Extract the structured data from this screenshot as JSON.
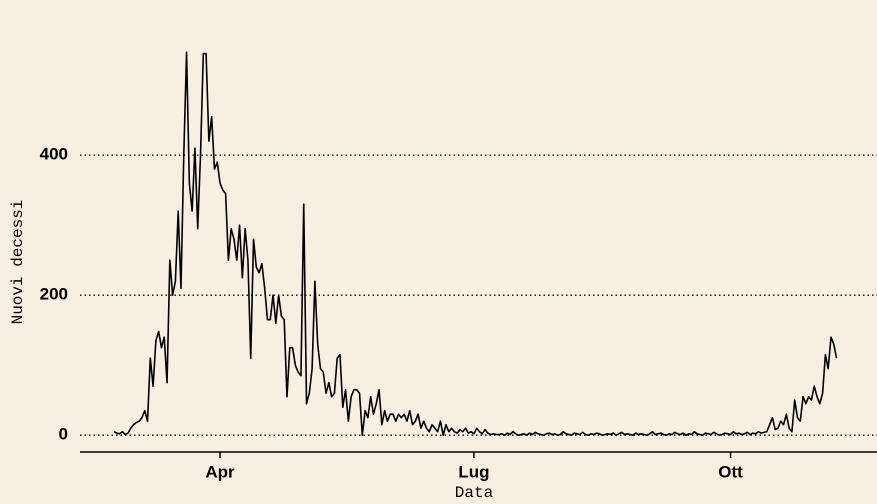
{
  "chart_data": {
    "type": "line",
    "x_label": "Data",
    "y_label": "Nuovi decessi",
    "x": [
      54,
      55,
      56,
      57,
      58,
      59,
      60,
      61,
      62,
      63,
      64,
      65,
      66,
      67,
      68,
      69,
      70,
      71,
      72,
      73,
      74,
      75,
      76,
      77,
      78,
      79,
      80,
      81,
      82,
      83,
      84,
      85,
      86,
      87,
      88,
      89,
      90,
      91,
      92,
      93,
      94,
      95,
      96,
      97,
      98,
      99,
      100,
      101,
      102,
      103,
      104,
      105,
      106,
      107,
      108,
      109,
      110,
      111,
      112,
      113,
      114,
      115,
      116,
      117,
      118,
      119,
      120,
      121,
      122,
      123,
      124,
      125,
      126,
      127,
      128,
      129,
      130,
      131,
      132,
      133,
      134,
      135,
      136,
      137,
      138,
      139,
      140,
      141,
      142,
      143,
      144,
      145,
      146,
      147,
      148,
      149,
      150,
      151,
      152,
      153,
      154,
      155,
      156,
      157,
      158,
      159,
      160,
      161,
      162,
      163,
      164,
      165,
      166,
      167,
      168,
      169,
      170,
      171,
      172,
      173,
      174,
      175,
      176,
      177,
      178,
      179,
      180,
      181,
      182,
      183,
      184,
      185,
      186,
      187,
      188,
      189,
      190,
      191,
      192,
      193,
      194,
      195,
      196,
      197,
      198,
      199,
      200,
      201,
      202,
      203,
      204,
      205,
      206,
      207,
      208,
      209,
      210,
      211,
      212,
      213,
      214,
      215,
      216,
      217,
      218,
      219,
      220,
      221,
      222,
      223,
      224,
      225,
      226,
      227,
      228,
      229,
      230,
      231,
      232,
      233,
      234,
      235,
      236,
      237,
      238,
      239,
      240,
      241,
      242,
      243,
      244,
      245,
      246,
      247,
      248,
      249,
      250,
      251,
      252,
      253,
      254,
      255,
      256,
      257,
      258,
      259,
      260,
      261,
      262,
      263,
      264,
      265,
      266,
      267,
      268,
      269,
      270,
      271,
      272,
      273,
      274,
      275,
      276,
      277,
      278,
      279,
      280,
      281,
      282,
      283,
      284,
      285,
      286,
      287,
      288,
      289,
      290,
      291,
      292,
      293,
      294,
      295,
      296,
      297,
      298,
      299,
      300,
      301,
      302,
      303,
      304,
      305,
      306,
      307,
      308,
      309,
      310,
      311,
      312,
      313
    ],
    "series": [
      {
        "name": null,
        "color": "#000000",
        "values": [
          5,
          3,
          2,
          5,
          1,
          3,
          10,
          15,
          18,
          20,
          25,
          35,
          20,
          110,
          70,
          135,
          148,
          125,
          140,
          75,
          250,
          200,
          220,
          320,
          210,
          400,
          547,
          360,
          320,
          410,
          295,
          400,
          545,
          545,
          420,
          455,
          380,
          390,
          360,
          350,
          345,
          250,
          295,
          280,
          250,
          300,
          225,
          295,
          250,
          110,
          280,
          240,
          232,
          245,
          210,
          165,
          165,
          200,
          160,
          200,
          170,
          165,
          55,
          125,
          125,
          100,
          90,
          85,
          330,
          45,
          60,
          95,
          220,
          130,
          95,
          90,
          60,
          75,
          55,
          60,
          110,
          115,
          40,
          65,
          20,
          55,
          65,
          65,
          60,
          0,
          35,
          25,
          55,
          30,
          45,
          65,
          15,
          35,
          20,
          30,
          30,
          20,
          30,
          25,
          30,
          20,
          35,
          15,
          20,
          30,
          10,
          20,
          10,
          5,
          15,
          10,
          5,
          20,
          0,
          15,
          5,
          10,
          5,
          3,
          8,
          5,
          10,
          3,
          5,
          2,
          10,
          5,
          2,
          8,
          3,
          1,
          2,
          1,
          1,
          2,
          0,
          3,
          1,
          5,
          2,
          0,
          1,
          2,
          0,
          3,
          1,
          4,
          2,
          1,
          0,
          2,
          3,
          1,
          2,
          0,
          1,
          5,
          2,
          1,
          0,
          3,
          2,
          1,
          4,
          1,
          0,
          2,
          1,
          3,
          2,
          0,
          1,
          2,
          1,
          3,
          0,
          2,
          4,
          1,
          2,
          1,
          0,
          3,
          1,
          2,
          1,
          0,
          2,
          5,
          1,
          2,
          3,
          1,
          0,
          2,
          1,
          4,
          2,
          1,
          3,
          0,
          2,
          1,
          5,
          2,
          1,
          0,
          3,
          2,
          1,
          4,
          2,
          0,
          1,
          3,
          2,
          1,
          5,
          2,
          3,
          1,
          2,
          4,
          1,
          3,
          2,
          5,
          3,
          4,
          5,
          15,
          25,
          8,
          10,
          20,
          15,
          30,
          10,
          5,
          50,
          25,
          20,
          55,
          45,
          55,
          50,
          70,
          55,
          45,
          60,
          115,
          95,
          140,
          130,
          110
        ]
      }
    ],
    "xlim": [
      41.8,
      327.5
    ],
    "xticks": [
      {
        "value": 92,
        "label": "Apr"
      },
      {
        "value": 183,
        "label": "Lug"
      },
      {
        "value": 275,
        "label": "Ott"
      }
    ],
    "ylim": [
      -24,
      593
    ],
    "yticks": [
      0,
      200,
      400
    ],
    "grid": true
  }
}
